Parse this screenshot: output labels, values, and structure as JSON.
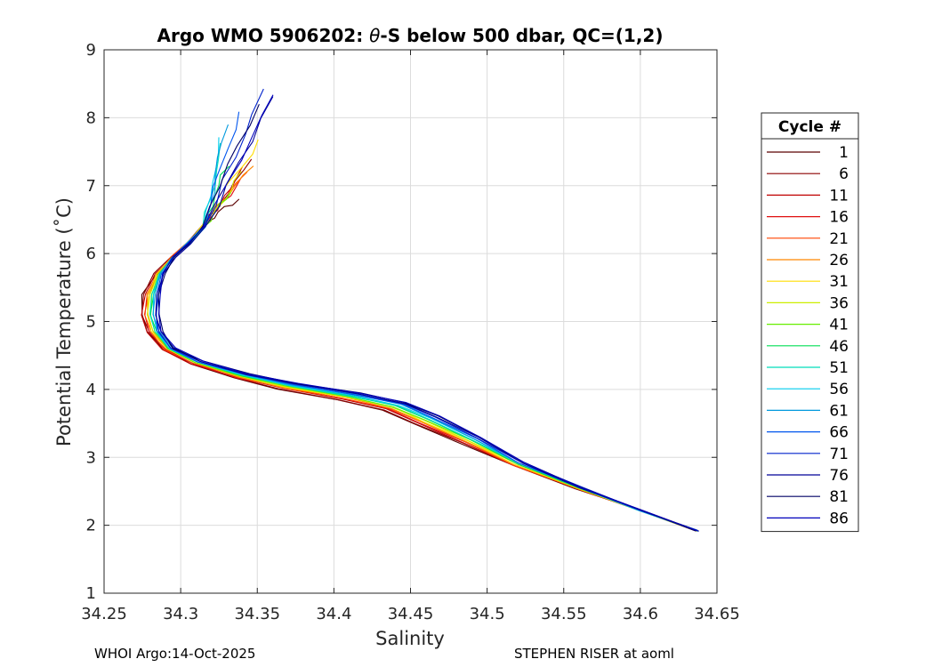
{
  "chart_data": {
    "type": "line",
    "title_prefix": "Argo WMO 5906202: ",
    "title_theta": "θ",
    "title_suffix": "-S below 500 dbar,  QC=(1,2)",
    "xlabel": "Salinity",
    "ylabel": "Potential Temperature (˚C)",
    "xlim": [
      34.25,
      34.65
    ],
    "ylim": [
      1,
      9
    ],
    "xticks": [
      34.25,
      34.3,
      34.35,
      34.4,
      34.45,
      34.5,
      34.55,
      34.6,
      34.65
    ],
    "xtick_labels": [
      "34.25",
      "34.3",
      "34.35",
      "34.4",
      "34.45",
      "34.5",
      "34.55",
      "34.6",
      "34.65"
    ],
    "yticks": [
      1,
      2,
      3,
      4,
      5,
      6,
      7,
      8,
      9
    ],
    "ytick_labels": [
      "1",
      "2",
      "3",
      "4",
      "5",
      "6",
      "7",
      "8",
      "9"
    ],
    "grid": true,
    "legend_title": "Cycle #",
    "legend_position": "outside-right",
    "series": [
      {
        "name": "1",
        "color": "#5a0000",
        "top_s": 34.338,
        "top_t": 6.8
      },
      {
        "name": "6",
        "color": "#8c0000",
        "top_s": 34.345,
        "top_t": 7.4
      },
      {
        "name": "11",
        "color": "#c00000",
        "top_s": 34.342,
        "top_t": 7.3
      },
      {
        "name": "16",
        "color": "#e01010",
        "top_s": 34.34,
        "top_t": 7.1
      },
      {
        "name": "21",
        "color": "#ff4400",
        "top_s": 34.343,
        "top_t": 7.2
      },
      {
        "name": "26",
        "color": "#ff8800",
        "top_s": 34.346,
        "top_t": 7.3
      },
      {
        "name": "31",
        "color": "#ffdd00",
        "top_s": 34.352,
        "top_t": 7.7
      },
      {
        "name": "36",
        "color": "#ccee00",
        "top_s": 34.34,
        "top_t": 7.2
      },
      {
        "name": "41",
        "color": "#66ee00",
        "top_s": 34.332,
        "top_t": 6.9
      },
      {
        "name": "46",
        "color": "#00dd55",
        "top_s": 34.33,
        "top_t": 7.3
      },
      {
        "name": "51",
        "color": "#00ddbb",
        "top_s": 34.327,
        "top_t": 7.6
      },
      {
        "name": "56",
        "color": "#00ccee",
        "top_s": 34.325,
        "top_t": 7.7
      },
      {
        "name": "61",
        "color": "#0099dd",
        "top_s": 34.33,
        "top_t": 7.9
      },
      {
        "name": "66",
        "color": "#0055ee",
        "top_s": 34.34,
        "top_t": 8.1
      },
      {
        "name": "71",
        "color": "#0022cc",
        "top_s": 34.355,
        "top_t": 8.4
      },
      {
        "name": "76",
        "color": "#000099",
        "top_s": 34.36,
        "top_t": 8.3
      },
      {
        "name": "81",
        "color": "#000066",
        "top_s": 34.35,
        "top_t": 8.2
      },
      {
        "name": "86",
        "color": "#0000bb",
        "top_s": 34.362,
        "top_t": 8.35
      }
    ]
  },
  "footer": {
    "left": "WHOI Argo:14-Oct-2025",
    "right": "STEPHEN RISER at aoml"
  }
}
